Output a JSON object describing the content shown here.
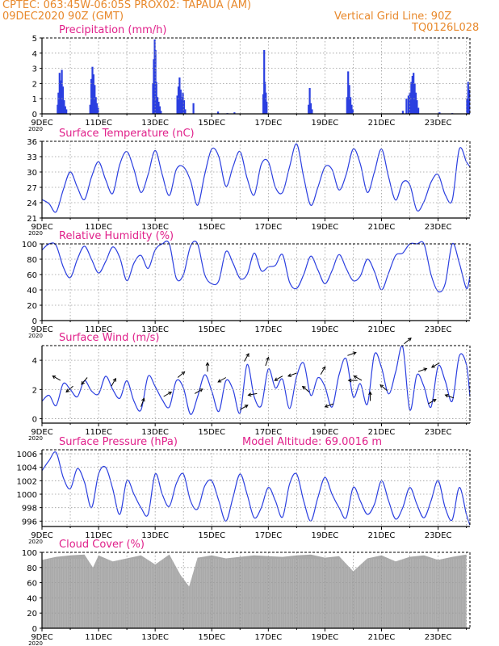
{
  "header": {
    "line1": "CPTEC:   063:45W-06:05S   PROX02: TAPAUA (AM)",
    "line2": "09DEC2020 90Z (GMT)",
    "grid_note": "Vertical Grid Line: 90Z",
    "code": "TQ0126L028"
  },
  "colors": {
    "header": "#e8892c",
    "title": "#e0208a",
    "line": "#2b3fe0",
    "bar": "#2b3fe0",
    "cloud": "#a9a9a9",
    "grid": "#9a9a9a"
  },
  "x_axis": {
    "tick_labels": [
      "9DEC",
      "11DEC",
      "13DEC",
      "15DEC",
      "17DEC",
      "19DEC",
      "21DEC",
      "23DEC"
    ],
    "day_range": [
      9,
      24.125
    ],
    "under_label": "2020"
  },
  "chart_data": [
    {
      "type": "bar",
      "title": "Precipitation (mm/h)",
      "ylim": [
        0,
        5
      ],
      "y_ticks": [
        "0",
        "1",
        "2",
        "3",
        "4",
        "5"
      ],
      "bars": [
        [
          9.55,
          0.6
        ],
        [
          9.58,
          1.4
        ],
        [
          9.62,
          2.7
        ],
        [
          9.66,
          2.2
        ],
        [
          9.7,
          2.9
        ],
        [
          9.74,
          1.8
        ],
        [
          9.78,
          0.9
        ],
        [
          9.82,
          0.5
        ],
        [
          9.86,
          0.3
        ],
        [
          10.7,
          0.6
        ],
        [
          10.74,
          2.3
        ],
        [
          10.78,
          3.1
        ],
        [
          10.82,
          2.6
        ],
        [
          10.86,
          1.9
        ],
        [
          10.9,
          1.1
        ],
        [
          10.94,
          0.7
        ],
        [
          10.98,
          0.4
        ],
        [
          12.92,
          2.0
        ],
        [
          12.95,
          3.6
        ],
        [
          12.98,
          4.9
        ],
        [
          13.01,
          4.2
        ],
        [
          13.04,
          2.1
        ],
        [
          13.08,
          1.1
        ],
        [
          13.12,
          0.8
        ],
        [
          13.16,
          0.5
        ],
        [
          13.2,
          0.2
        ],
        [
          13.78,
          1.2
        ],
        [
          13.82,
          1.8
        ],
        [
          13.86,
          2.4
        ],
        [
          13.9,
          1.6
        ],
        [
          13.94,
          1.1
        ],
        [
          13.98,
          1.4
        ],
        [
          14.02,
          0.9
        ],
        [
          14.06,
          0.3
        ],
        [
          14.35,
          0.7
        ],
        [
          15.22,
          0.15
        ],
        [
          15.55,
          0.05
        ],
        [
          15.8,
          0.1
        ],
        [
          16.82,
          1.3
        ],
        [
          16.85,
          4.2
        ],
        [
          16.88,
          2.1
        ],
        [
          16.91,
          1.4
        ],
        [
          16.94,
          0.8
        ],
        [
          18.42,
          0.6
        ],
        [
          18.46,
          1.7
        ],
        [
          18.5,
          0.7
        ],
        [
          18.54,
          0.3
        ],
        [
          19.78,
          1.1
        ],
        [
          19.82,
          2.8
        ],
        [
          19.86,
          1.9
        ],
        [
          19.9,
          1.1
        ],
        [
          19.94,
          0.6
        ],
        [
          19.98,
          0.3
        ],
        [
          21.75,
          0.2
        ],
        [
          21.88,
          1.0
        ],
        [
          21.95,
          1.2
        ],
        [
          22.0,
          1.4
        ],
        [
          22.05,
          2.1
        ],
        [
          22.09,
          2.5
        ],
        [
          22.13,
          2.7
        ],
        [
          22.17,
          2.0
        ],
        [
          22.21,
          1.4
        ],
        [
          22.25,
          0.9
        ],
        [
          22.3,
          0.4
        ],
        [
          23.05,
          0.1
        ],
        [
          23.5,
          0.05
        ],
        [
          24.02,
          1.0
        ],
        [
          24.06,
          2.1
        ],
        [
          24.1,
          1.6
        ]
      ]
    },
    {
      "type": "line",
      "title": "Surface Temperature (nC)",
      "ylim": [
        21,
        36
      ],
      "y_ticks": [
        "21",
        "24",
        "27",
        "30",
        "33",
        "36"
      ],
      "x": [
        9,
        9.25,
        9.5,
        9.75,
        10,
        10.25,
        10.5,
        10.75,
        11,
        11.25,
        11.5,
        11.75,
        12,
        12.25,
        12.5,
        12.75,
        13,
        13.25,
        13.5,
        13.75,
        14,
        14.25,
        14.5,
        14.75,
        15,
        15.25,
        15.5,
        15.75,
        16,
        16.25,
        16.5,
        16.75,
        17,
        17.25,
        17.5,
        17.75,
        18,
        18.25,
        18.5,
        18.75,
        19,
        19.25,
        19.5,
        19.75,
        20,
        20.25,
        20.5,
        20.75,
        21,
        21.25,
        21.5,
        21.75,
        22,
        22.25,
        22.5,
        22.75,
        23,
        23.25,
        23.5,
        23.75,
        24,
        24.125
      ],
      "y": [
        24.6,
        23.8,
        22.2,
        26.5,
        30,
        27,
        24.6,
        29,
        32,
        28.5,
        25.8,
        31.5,
        34,
        30.5,
        26,
        29.5,
        34.2,
        29.5,
        25.4,
        30.5,
        31,
        28.3,
        23.5,
        29.5,
        34.5,
        33,
        27.2,
        31,
        34,
        28.8,
        25.5,
        31.5,
        32,
        27,
        26,
        31,
        35.5,
        29,
        23.5,
        27,
        31,
        30.5,
        26.5,
        29.5,
        34.5,
        31.6,
        26,
        30,
        34.5,
        29,
        24.5,
        28,
        27.5,
        22.5,
        24.2,
        28,
        29.5,
        25.6,
        24.5,
        34.5,
        32,
        31
      ]
    },
    {
      "type": "line",
      "title": "Relative Humidity (%)",
      "ylim": [
        0,
        100
      ],
      "y_ticks": [
        "0",
        "20",
        "40",
        "60",
        "80",
        "100"
      ],
      "x": [
        9,
        9.25,
        9.5,
        9.75,
        10,
        10.25,
        10.5,
        10.75,
        11,
        11.25,
        11.5,
        11.75,
        12,
        12.25,
        12.5,
        12.75,
        13,
        13.25,
        13.5,
        13.75,
        14,
        14.25,
        14.5,
        14.75,
        15,
        15.25,
        15.5,
        15.75,
        16,
        16.25,
        16.5,
        16.75,
        17,
        17.25,
        17.5,
        17.75,
        18,
        18.25,
        18.5,
        18.75,
        19,
        19.25,
        19.5,
        19.75,
        20,
        20.25,
        20.5,
        20.75,
        21,
        21.25,
        21.5,
        21.75,
        22,
        22.25,
        22.5,
        22.75,
        23,
        23.25,
        23.5,
        23.75,
        24,
        24.125
      ],
      "y": [
        92,
        100,
        98,
        70,
        56,
        80,
        97,
        80,
        62,
        77,
        96,
        82,
        52,
        75,
        85,
        68,
        92,
        100,
        100,
        55,
        60,
        97,
        100,
        60,
        48,
        52,
        90,
        75,
        55,
        60,
        88,
        65,
        70,
        72,
        86,
        50,
        42,
        60,
        84,
        66,
        48,
        65,
        86,
        68,
        52,
        58,
        80,
        64,
        40,
        62,
        85,
        88,
        100,
        100,
        100,
        60,
        38,
        48,
        100,
        75,
        42,
        58
      ]
    },
    {
      "type": "line",
      "title": "Surface Wind (m/s)",
      "ylim": [
        -0.3,
        5
      ],
      "y_ticks": [
        "0",
        "2",
        "4"
      ],
      "x": [
        9,
        9.25,
        9.5,
        9.75,
        10,
        10.25,
        10.5,
        10.75,
        11,
        11.25,
        11.5,
        11.75,
        12,
        12.25,
        12.5,
        12.75,
        13,
        13.25,
        13.5,
        13.75,
        14,
        14.25,
        14.5,
        14.75,
        15,
        15.25,
        15.5,
        15.75,
        16,
        16.25,
        16.5,
        16.75,
        17,
        17.25,
        17.5,
        17.75,
        18,
        18.25,
        18.5,
        18.75,
        19,
        19.25,
        19.5,
        19.75,
        20,
        20.25,
        20.5,
        20.75,
        21,
        21.25,
        21.5,
        21.75,
        22,
        22.25,
        22.5,
        22.75,
        23,
        23.25,
        23.5,
        23.75,
        24,
        24.125
      ],
      "y": [
        1.2,
        1.6,
        0.9,
        2.4,
        2.0,
        1.5,
        2.6,
        1.9,
        1.7,
        2.9,
        2.0,
        1.4,
        2.6,
        1.2,
        0.6,
        2.9,
        2.2,
        1.3,
        0.8,
        2.6,
        2.1,
        0.3,
        1.5,
        3.0,
        1.9,
        0.5,
        2.6,
        2.0,
        0.4,
        3.7,
        1.5,
        0.9,
        3.4,
        2.1,
        2.7,
        0.7,
        2.9,
        3.8,
        1.6,
        2.8,
        2.2,
        0.8,
        3.0,
        4.1,
        1.5,
        2.4,
        1.0,
        4.4,
        3.5,
        1.7,
        3.2,
        4.9,
        0.6,
        3.0,
        2.2,
        0.8,
        3.6,
        2.6,
        1.2,
        4.3,
        3.7,
        1.5
      ],
      "arrows": [
        [
          9.65,
          -150
        ],
        [
          10.1,
          -220
        ],
        [
          10.6,
          -230
        ],
        [
          11.45,
          -60
        ],
        [
          12.5,
          -70
        ],
        [
          13.3,
          -30
        ],
        [
          13.8,
          -40
        ],
        [
          14.4,
          -30
        ],
        [
          14.85,
          -90
        ],
        [
          15.5,
          -210
        ],
        [
          16.0,
          -30
        ],
        [
          16.15,
          -60
        ],
        [
          16.6,
          -190
        ],
        [
          16.9,
          -70
        ],
        [
          17.5,
          -210
        ],
        [
          18.0,
          -200
        ],
        [
          18.45,
          -140
        ],
        [
          18.85,
          -60
        ],
        [
          19.3,
          -200
        ],
        [
          19.8,
          -20
        ],
        [
          20.15,
          -180
        ],
        [
          20.3,
          -150
        ],
        [
          20.6,
          -90
        ],
        [
          21.2,
          -140
        ],
        [
          21.8,
          -40
        ],
        [
          22.3,
          -20
        ],
        [
          22.65,
          -30
        ],
        [
          23.05,
          -210
        ],
        [
          23.55,
          -160
        ]
      ]
    },
    {
      "type": "line",
      "title": "Surface Pressure (hPa)",
      "annotation": "Model Altitude: 69.0016 m",
      "ylim": [
        995.2,
        1006.6
      ],
      "y_ticks": [
        "996",
        "998",
        "1000",
        "1002",
        "1004",
        "1006"
      ],
      "x": [
        9,
        9.25,
        9.5,
        9.75,
        10,
        10.25,
        10.5,
        10.75,
        11,
        11.25,
        11.5,
        11.75,
        12,
        12.25,
        12.5,
        12.75,
        13,
        13.25,
        13.5,
        13.75,
        14,
        14.25,
        14.5,
        14.75,
        15,
        15.25,
        15.5,
        15.75,
        16,
        16.25,
        16.5,
        16.75,
        17,
        17.25,
        17.5,
        17.75,
        18,
        18.25,
        18.5,
        18.75,
        19,
        19.25,
        19.5,
        19.75,
        20,
        20.25,
        20.5,
        20.75,
        21,
        21.25,
        21.5,
        21.75,
        22,
        22.25,
        22.5,
        22.75,
        23,
        23.25,
        23.5,
        23.75,
        24,
        24.125
      ],
      "y": [
        1003.5,
        1005.0,
        1006.2,
        1002.5,
        1000.8,
        1003.8,
        1001.8,
        998.0,
        1003.0,
        1004.0,
        1000.8,
        997.0,
        1002.0,
        1000.0,
        998.0,
        997.0,
        1003.0,
        1000.0,
        998.2,
        1001.6,
        1003.0,
        999.0,
        997.8,
        1001.2,
        1002.0,
        999.0,
        996.0,
        999.5,
        1003.0,
        1000.0,
        996.5,
        998.0,
        1001.0,
        999.0,
        996.6,
        1001.5,
        1003.0,
        999.0,
        996.0,
        999.5,
        1002.5,
        1000.0,
        998.0,
        996.5,
        1001.0,
        999.0,
        997.0,
        998.5,
        1002.0,
        999.0,
        996.3,
        998.0,
        1001.0,
        998.5,
        996.5,
        999.0,
        1002.0,
        998.0,
        996.2,
        1001.0,
        997.0,
        995.4
      ]
    },
    {
      "type": "bar",
      "title": "Cloud Cover (%)",
      "ylim": [
        0,
        100
      ],
      "y_ticks": [
        "0",
        "20",
        "40",
        "60",
        "80",
        "100"
      ],
      "x": [
        9,
        9.5,
        10,
        10.5,
        10.8,
        11,
        11.5,
        12,
        12.5,
        13,
        13.5,
        13.9,
        14.2,
        14.5,
        15,
        15.5,
        16,
        16.5,
        17,
        17.5,
        18,
        18.5,
        19,
        19.5,
        20,
        20.5,
        21,
        21.5,
        22,
        22.5,
        23,
        23.5,
        24
      ],
      "values": [
        90,
        94,
        96,
        97,
        80,
        96,
        88,
        92,
        96,
        84,
        97,
        70,
        55,
        93,
        96,
        92,
        94,
        96,
        95,
        94,
        96,
        97,
        93,
        95,
        75,
        92,
        96,
        88,
        94,
        96,
        90,
        94,
        97
      ]
    }
  ]
}
